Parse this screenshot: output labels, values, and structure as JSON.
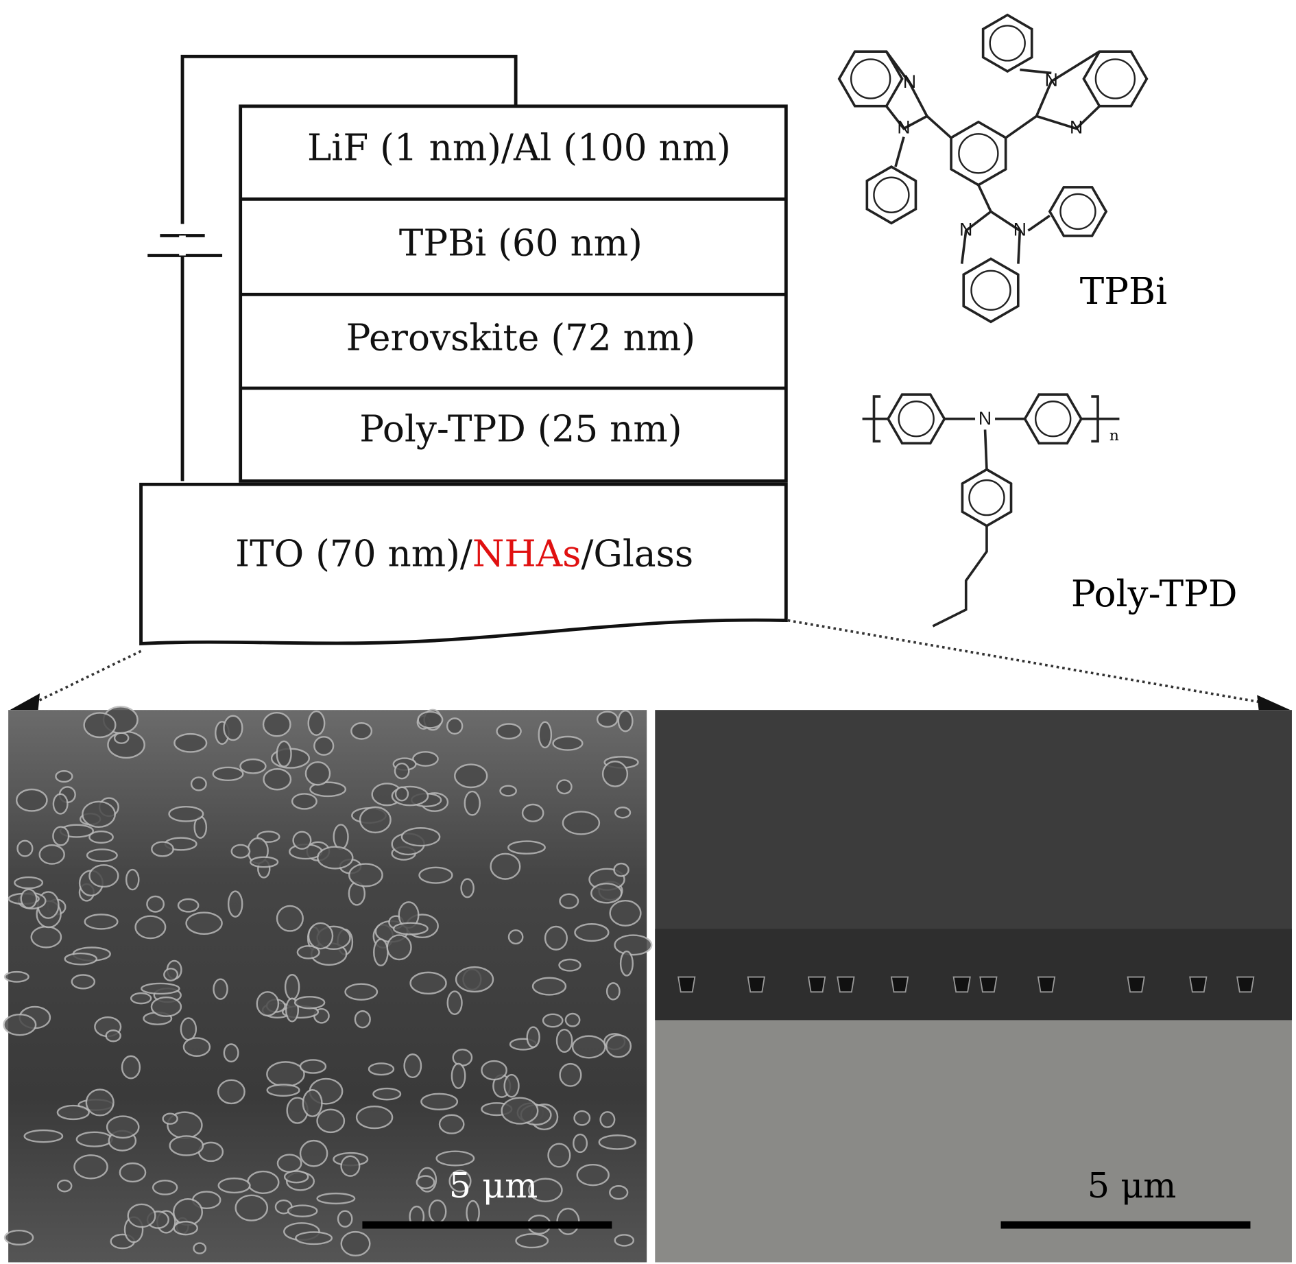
{
  "device": {
    "layers": [
      "LiF (1 nm)/Al (100 nm)",
      "TPBi (60 nm)",
      "Perovskite (72 nm)",
      "Poly-TPD (25 nm)"
    ],
    "substrate": {
      "parts": [
        "ITO (70 nm)/",
        "NHAs",
        "/Glass"
      ]
    }
  },
  "molecules": {
    "tpbi": {
      "label": "TPBi",
      "atoms": [
        "N",
        "N",
        "N",
        "N",
        "N",
        "N"
      ]
    },
    "poly_tpd": {
      "label": "Poly-TPD",
      "atoms": [
        "N"
      ],
      "subscript": "n"
    }
  },
  "images": {
    "left": {
      "scale_bar": "5 μm"
    },
    "right": {
      "scale_bar": "5 μm"
    }
  }
}
